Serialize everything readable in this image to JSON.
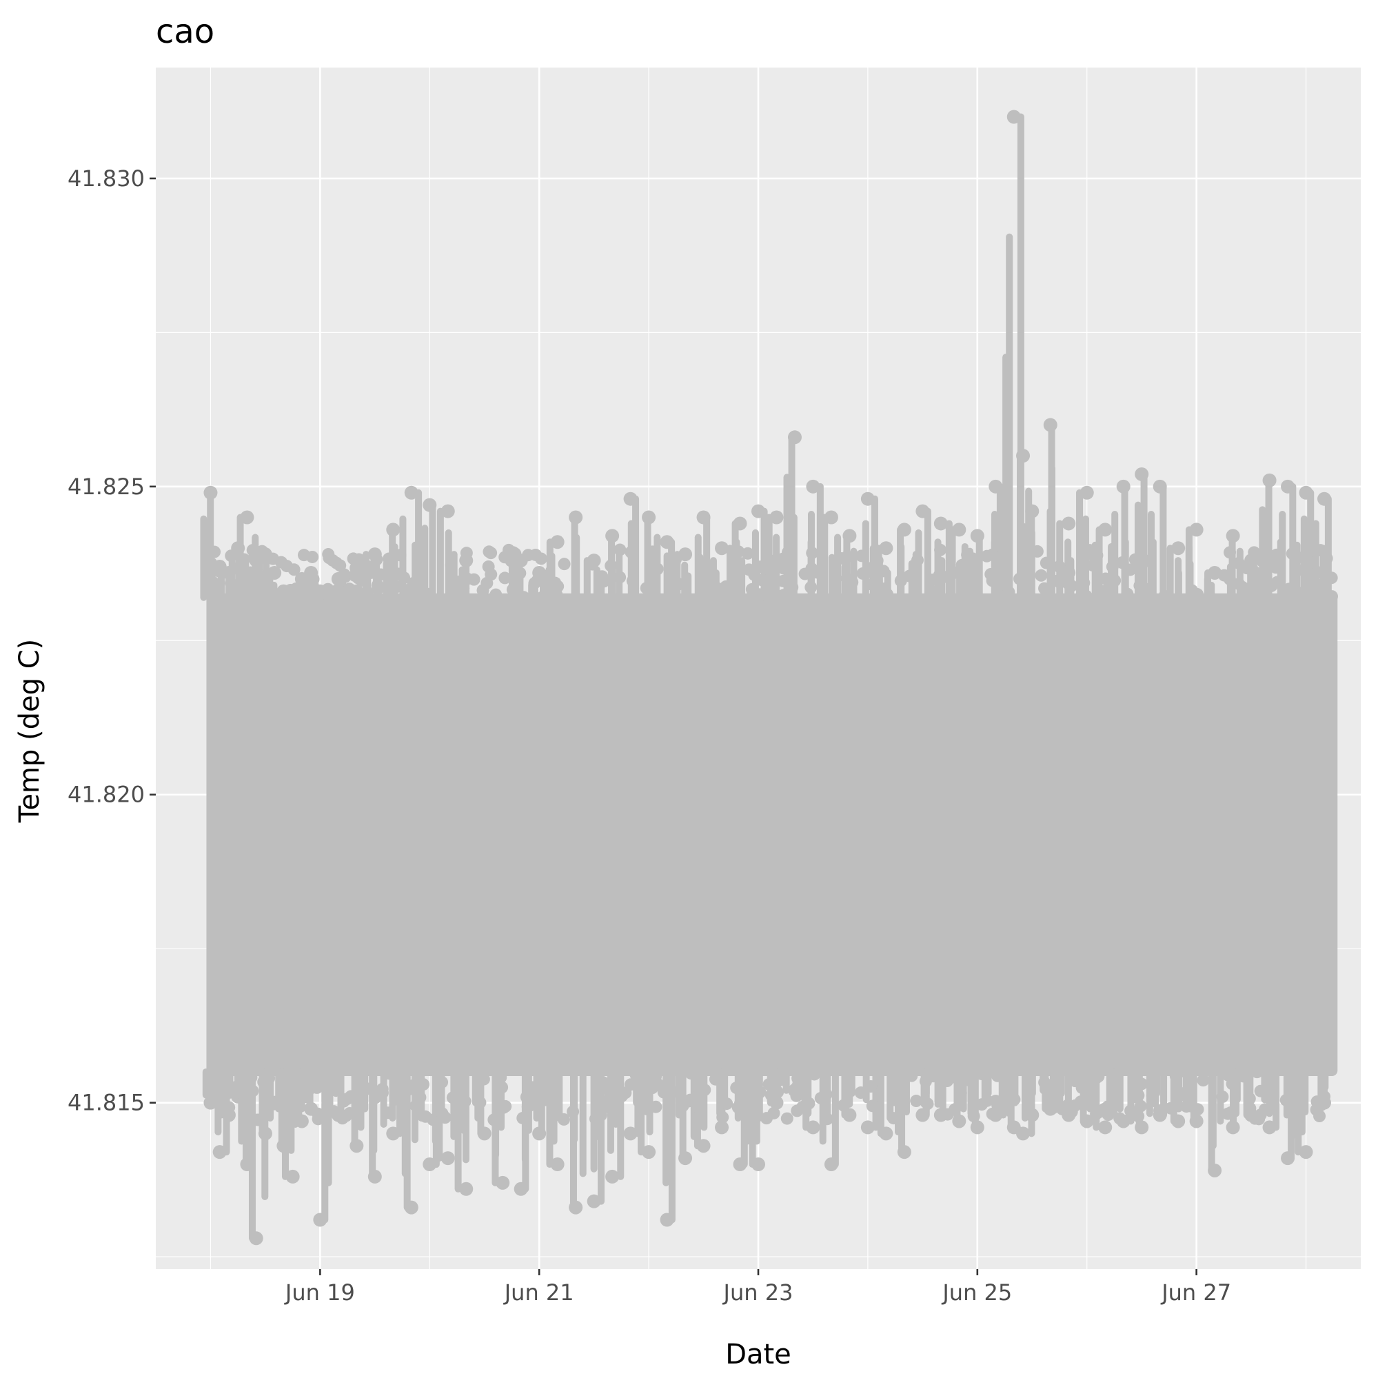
{
  "chart_data": {
    "type": "scatter",
    "title": "cao",
    "xlabel": "Date",
    "ylabel": "Temp (deg C)",
    "x_is_date": true,
    "x_range": [
      "2019-06-17T12:00:00",
      "2019-06-28T12:00:00"
    ],
    "x_ticks": [
      {
        "value": "2019-06-19T00:00:00",
        "label": "Jun 19"
      },
      {
        "value": "2019-06-21T00:00:00",
        "label": "Jun 21"
      },
      {
        "value": "2019-06-23T00:00:00",
        "label": "Jun 23"
      },
      {
        "value": "2019-06-25T00:00:00",
        "label": "Jun 25"
      },
      {
        "value": "2019-06-27T00:00:00",
        "label": "Jun 27"
      }
    ],
    "ylim": [
      41.8123,
      41.8318
    ],
    "y_ticks": [
      {
        "value": 41.815,
        "label": "41.815"
      },
      {
        "value": 41.82,
        "label": "41.820"
      },
      {
        "value": 41.825,
        "label": "41.825"
      },
      {
        "value": 41.83,
        "label": "41.830"
      }
    ],
    "grid": true,
    "point_color": "#bebebe",
    "panel_background": "#ebebeb",
    "data_start": "2019-06-18T00:00:00",
    "data_end": "2019-06-28T06:00:00",
    "typical_range": [
      41.8155,
      41.8232
    ],
    "series": [
      {
        "x": [
          "2019-06-18T00:00:00",
          "2019-06-18T02:00:00",
          "2019-06-18T04:00:00",
          "2019-06-18T06:00:00",
          "2019-06-18T08:00:00",
          "2019-06-18T10:00:00",
          "2019-06-18T12:00:00",
          "2019-06-18T14:00:00",
          "2019-06-18T16:00:00",
          "2019-06-18T18:00:00",
          "2019-06-18T20:00:00",
          "2019-06-18T22:00:00",
          "2019-06-19T00:00:00",
          "2019-06-19T04:00:00",
          "2019-06-19T08:00:00",
          "2019-06-19T12:00:00",
          "2019-06-19T16:00:00",
          "2019-06-19T20:00:00",
          "2019-06-20T00:00:00",
          "2019-06-20T04:00:00",
          "2019-06-20T08:00:00",
          "2019-06-20T12:00:00",
          "2019-06-20T16:00:00",
          "2019-06-20T20:00:00",
          "2019-06-21T00:00:00",
          "2019-06-21T04:00:00",
          "2019-06-21T08:00:00",
          "2019-06-21T12:00:00",
          "2019-06-21T16:00:00",
          "2019-06-21T20:00:00",
          "2019-06-22T00:00:00",
          "2019-06-22T04:00:00",
          "2019-06-22T08:00:00",
          "2019-06-22T12:00:00",
          "2019-06-22T16:00:00",
          "2019-06-22T20:00:00",
          "2019-06-23T00:00:00",
          "2019-06-23T04:00:00",
          "2019-06-23T08:00:00",
          "2019-06-23T12:00:00",
          "2019-06-23T16:00:00",
          "2019-06-23T20:00:00",
          "2019-06-24T00:00:00",
          "2019-06-24T04:00:00",
          "2019-06-24T08:00:00",
          "2019-06-24T12:00:00",
          "2019-06-24T16:00:00",
          "2019-06-24T20:00:00",
          "2019-06-25T00:00:00",
          "2019-06-25T04:00:00",
          "2019-06-25T08:00:00",
          "2019-06-25T10:00:00",
          "2019-06-25T12:00:00",
          "2019-06-25T16:00:00",
          "2019-06-25T20:00:00",
          "2019-06-26T00:00:00",
          "2019-06-26T04:00:00",
          "2019-06-26T08:00:00",
          "2019-06-26T12:00:00",
          "2019-06-26T16:00:00",
          "2019-06-26T20:00:00",
          "2019-06-27T00:00:00",
          "2019-06-27T04:00:00",
          "2019-06-27T08:00:00",
          "2019-06-27T12:00:00",
          "2019-06-27T16:00:00",
          "2019-06-27T20:00:00",
          "2019-06-28T00:00:00",
          "2019-06-28T04:00:00"
        ],
        "y_min": [
          41.815,
          41.8142,
          41.8148,
          41.8151,
          41.814,
          41.8128,
          41.8145,
          41.815,
          41.8143,
          41.8138,
          41.8147,
          41.8149,
          41.8131,
          41.8148,
          41.8143,
          41.8138,
          41.8145,
          41.8133,
          41.814,
          41.8141,
          41.8136,
          41.8145,
          41.8137,
          41.8136,
          41.8145,
          41.814,
          41.8133,
          41.8134,
          41.8138,
          41.8145,
          41.8142,
          41.8131,
          41.8141,
          41.8143,
          41.8146,
          41.814,
          41.814,
          41.815,
          41.8152,
          41.8146,
          41.814,
          41.8148,
          41.8146,
          41.8145,
          41.8142,
          41.8148,
          41.8148,
          41.8147,
          41.8146,
          41.8148,
          41.8146,
          41.8145,
          41.8148,
          41.8149,
          41.8148,
          41.8147,
          41.8146,
          41.8147,
          41.8146,
          41.8148,
          41.8147,
          41.8147,
          41.8139,
          41.8146,
          41.8148,
          41.8146,
          41.8141,
          41.8142,
          41.815
        ],
        "y_max": [
          41.8249,
          41.8237,
          41.8236,
          41.824,
          41.8245,
          41.8238,
          41.8239,
          41.8236,
          41.8233,
          41.8232,
          41.8235,
          41.8236,
          41.8233,
          41.8235,
          41.8233,
          41.8239,
          41.8243,
          41.8249,
          41.8247,
          41.8246,
          41.8238,
          41.8231,
          41.823,
          41.8238,
          41.8236,
          41.8241,
          41.8245,
          41.8238,
          41.8242,
          41.8248,
          41.8245,
          41.8241,
          41.8239,
          41.8245,
          41.824,
          41.8244,
          41.8246,
          41.8245,
          41.8258,
          41.825,
          41.8245,
          41.8242,
          41.8248,
          41.824,
          41.8243,
          41.8246,
          41.8244,
          41.8243,
          41.8242,
          41.825,
          41.831,
          41.8255,
          41.8246,
          41.826,
          41.8244,
          41.8249,
          41.8243,
          41.825,
          41.8252,
          41.825,
          41.824,
          41.8243,
          41.8236,
          41.8242,
          41.8238,
          41.8251,
          41.825,
          41.8249,
          41.8248
        ]
      }
    ]
  }
}
